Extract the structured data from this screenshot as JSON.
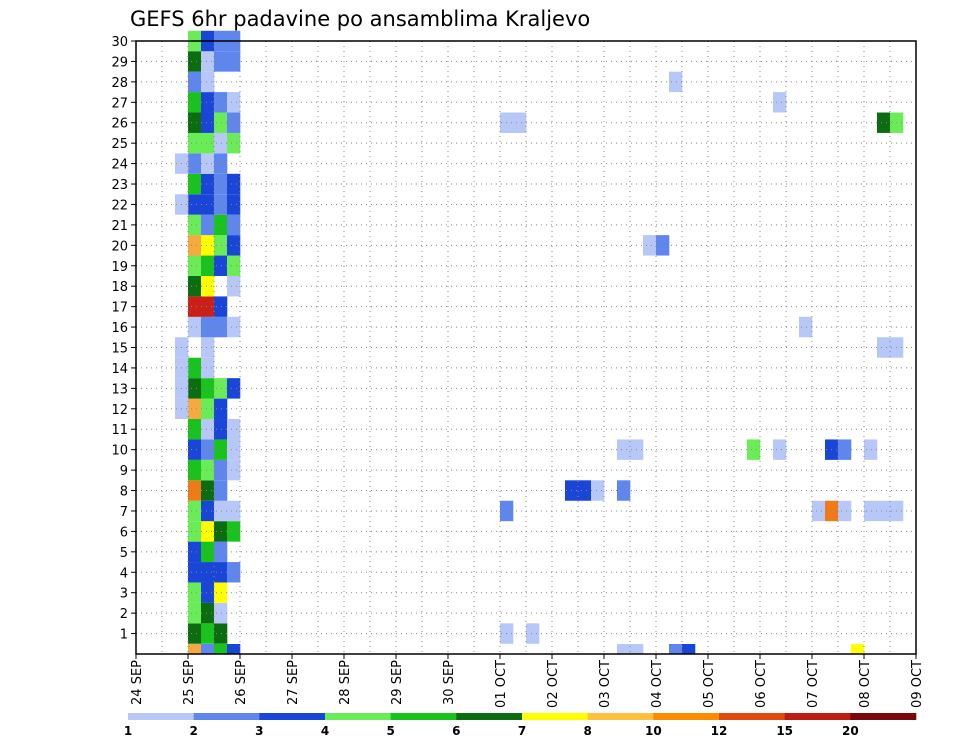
{
  "chart_data": {
    "type": "heatmap",
    "title": "GEFS 6hr padavine po ansamblima Kraljevo",
    "y_ticks": [
      "1",
      "2",
      "3",
      "4",
      "5",
      "6",
      "7",
      "8",
      "9",
      "10",
      "11",
      "12",
      "13",
      "14",
      "15",
      "16",
      "17",
      "18",
      "19",
      "20",
      "21",
      "22",
      "23",
      "24",
      "25",
      "26",
      "27",
      "28",
      "29",
      "30"
    ],
    "x_ticks": [
      "24 SEP",
      "25 SEP",
      "26 SEP",
      "27 SEP",
      "28 SEP",
      "29 SEP",
      "30 SEP",
      "01 OCT",
      "02 OCT",
      "03 OCT",
      "04 OCT",
      "05 OCT",
      "06 OCT",
      "07 OCT",
      "08 OCT",
      "09 OCT"
    ],
    "grid": true,
    "colorbar": {
      "labels": [
        "1",
        "2",
        "3",
        "4",
        "5",
        "6",
        "7",
        "8",
        "10",
        "12",
        "15",
        "20"
      ],
      "colors": [
        "#b7c8f8",
        "#5f86ec",
        "#1a46d8",
        "#6aec57",
        "#19c21c",
        "#0b6d10",
        "#ffff00",
        "#ffc13d",
        "#fb8c00",
        "#e04a10",
        "#bf1b15",
        "#7a0808"
      ]
    },
    "cells": [
      [
        4,
        0,
        "#f5a93f"
      ],
      [
        4,
        1,
        "#0b6d10"
      ],
      [
        4,
        2,
        "#6aec57"
      ],
      [
        4,
        3,
        "#6aec57"
      ],
      [
        4,
        4,
        "#1a46d8"
      ],
      [
        4,
        5,
        "#1a46d8"
      ],
      [
        4,
        6,
        "#6aec57"
      ],
      [
        4,
        7,
        "#6aec57"
      ],
      [
        4,
        8,
        "#f07a18"
      ],
      [
        4,
        9,
        "#19c21c"
      ],
      [
        4,
        10,
        "#1a46d8"
      ],
      [
        4,
        11,
        "#19c21c"
      ],
      [
        4,
        12,
        "#f5a93f"
      ],
      [
        4,
        13,
        "#0b6d10"
      ],
      [
        4,
        14,
        "#19c21c"
      ],
      [
        4,
        16,
        "#b7c8f8"
      ],
      [
        4,
        17,
        "#c9201a"
      ],
      [
        4,
        18,
        "#0b6d10"
      ],
      [
        4,
        19,
        "#6aec57"
      ],
      [
        4,
        20,
        "#f5a93f"
      ],
      [
        4,
        21,
        "#6aec57"
      ],
      [
        4,
        22,
        "#1a46d8"
      ],
      [
        4,
        23,
        "#19c21c"
      ],
      [
        4,
        24,
        "#5f86ec"
      ],
      [
        4,
        25,
        "#6aec57"
      ],
      [
        4,
        26,
        "#0b6d10"
      ],
      [
        4,
        27,
        "#19c21c"
      ],
      [
        4,
        28,
        "#5f86ec"
      ],
      [
        4,
        29,
        "#0b6d10"
      ],
      [
        4,
        30,
        "#6aec57"
      ],
      [
        3,
        12,
        "#b7c8f8"
      ],
      [
        3,
        13,
        "#b7c8f8"
      ],
      [
        3,
        14,
        "#b7c8f8"
      ],
      [
        3,
        15,
        "#b7c8f8"
      ],
      [
        3,
        22,
        "#b7c8f8"
      ],
      [
        3,
        24,
        "#b7c8f8"
      ],
      [
        5,
        0,
        "#5f86ec"
      ],
      [
        5,
        1,
        "#19c21c"
      ],
      [
        5,
        2,
        "#0b6d10"
      ],
      [
        5,
        3,
        "#1a46d8"
      ],
      [
        5,
        4,
        "#1a46d8"
      ],
      [
        5,
        5,
        "#19c21c"
      ],
      [
        5,
        6,
        "#ffff00"
      ],
      [
        5,
        7,
        "#1a46d8"
      ],
      [
        5,
        8,
        "#0b6d10"
      ],
      [
        5,
        9,
        "#6aec57"
      ],
      [
        5,
        10,
        "#5f86ec"
      ],
      [
        5,
        11,
        "#b7c8f8"
      ],
      [
        5,
        12,
        "#6aec57"
      ],
      [
        5,
        13,
        "#19c21c"
      ],
      [
        5,
        14,
        "#b7c8f8"
      ],
      [
        5,
        15,
        "#b7c8f8"
      ],
      [
        5,
        16,
        "#5f86ec"
      ],
      [
        5,
        17,
        "#c9201a"
      ],
      [
        5,
        18,
        "#ffff00"
      ],
      [
        5,
        19,
        "#19c21c"
      ],
      [
        5,
        20,
        "#ffff00"
      ],
      [
        5,
        21,
        "#5f86ec"
      ],
      [
        5,
        22,
        "#1a46d8"
      ],
      [
        5,
        23,
        "#1a46d8"
      ],
      [
        5,
        24,
        "#b7c8f8"
      ],
      [
        5,
        25,
        "#6aec57"
      ],
      [
        5,
        26,
        "#1a46d8"
      ],
      [
        5,
        27,
        "#1a46d8"
      ],
      [
        5,
        28,
        "#b7c8f8"
      ],
      [
        5,
        29,
        "#b7c8f8"
      ],
      [
        5,
        30,
        "#1a46d8"
      ],
      [
        6,
        0,
        "#19c21c"
      ],
      [
        6,
        1,
        "#0b6d10"
      ],
      [
        6,
        2,
        "#b7c8f8"
      ],
      [
        6,
        3,
        "#ffff00"
      ],
      [
        6,
        4,
        "#1a46d8"
      ],
      [
        6,
        5,
        "#5f86ec"
      ],
      [
        6,
        6,
        "#0b6d10"
      ],
      [
        6,
        7,
        "#b7c8f8"
      ],
      [
        6,
        8,
        "#5f86ec"
      ],
      [
        6,
        9,
        "#5f86ec"
      ],
      [
        6,
        10,
        "#19c21c"
      ],
      [
        6,
        11,
        "#1a46d8"
      ],
      [
        6,
        12,
        "#1a46d8"
      ],
      [
        6,
        13,
        "#6aec57"
      ],
      [
        6,
        16,
        "#5f86ec"
      ],
      [
        6,
        17,
        "#1a46d8"
      ],
      [
        6,
        19,
        "#1a46d8"
      ],
      [
        6,
        20,
        "#6aec57"
      ],
      [
        6,
        21,
        "#19c21c"
      ],
      [
        6,
        22,
        "#5f86ec"
      ],
      [
        6,
        23,
        "#5f86ec"
      ],
      [
        6,
        24,
        "#5f86ec"
      ],
      [
        6,
        25,
        "#b7c8f8"
      ],
      [
        6,
        26,
        "#6aec57"
      ],
      [
        6,
        27,
        "#5f86ec"
      ],
      [
        6,
        29,
        "#5f86ec"
      ],
      [
        6,
        30,
        "#5f86ec"
      ],
      [
        7,
        0,
        "#1a46d8"
      ],
      [
        7,
        4,
        "#5f86ec"
      ],
      [
        7,
        6,
        "#19c21c"
      ],
      [
        7,
        7,
        "#b7c8f8"
      ],
      [
        7,
        9,
        "#b7c8f8"
      ],
      [
        7,
        10,
        "#b7c8f8"
      ],
      [
        7,
        11,
        "#b7c8f8"
      ],
      [
        7,
        13,
        "#1a46d8"
      ],
      [
        7,
        16,
        "#b7c8f8"
      ],
      [
        7,
        18,
        "#b7c8f8"
      ],
      [
        7,
        19,
        "#6aec57"
      ],
      [
        7,
        20,
        "#1a46d8"
      ],
      [
        7,
        21,
        "#5f86ec"
      ],
      [
        7,
        22,
        "#1a46d8"
      ],
      [
        7,
        23,
        "#1a46d8"
      ],
      [
        7,
        25,
        "#6aec57"
      ],
      [
        7,
        26,
        "#5f86ec"
      ],
      [
        7,
        27,
        "#b7c8f8"
      ],
      [
        7,
        29,
        "#5f86ec"
      ],
      [
        7,
        30,
        "#5f86ec"
      ],
      [
        28,
        26,
        "#b7c8f8"
      ],
      [
        29,
        26,
        "#b7c8f8"
      ],
      [
        28,
        7,
        "#5f86ec"
      ],
      [
        28,
        1,
        "#b7c8f8"
      ],
      [
        30,
        1,
        "#b7c8f8"
      ],
      [
        33,
        8,
        "#1a46d8"
      ],
      [
        34,
        8,
        "#1a46d8"
      ],
      [
        35,
        8,
        "#b7c8f8"
      ],
      [
        37,
        8,
        "#5f86ec"
      ],
      [
        37,
        10,
        "#b7c8f8"
      ],
      [
        38,
        10,
        "#b7c8f8"
      ],
      [
        37,
        0,
        "#b7c8f8"
      ],
      [
        38,
        0,
        "#b7c8f8"
      ],
      [
        39,
        20,
        "#b7c8f8"
      ],
      [
        40,
        20,
        "#5f86ec"
      ],
      [
        41,
        28,
        "#b7c8f8"
      ],
      [
        41,
        0,
        "#5f86ec"
      ],
      [
        42,
        0,
        "#1a46d8"
      ],
      [
        47,
        10,
        "#6aec57"
      ],
      [
        49,
        10,
        "#b7c8f8"
      ],
      [
        49,
        27,
        "#b7c8f8"
      ],
      [
        51,
        16,
        "#b7c8f8"
      ],
      [
        52,
        7,
        "#b7c8f8"
      ],
      [
        53,
        7,
        "#f07a18"
      ],
      [
        54,
        7,
        "#b7c8f8"
      ],
      [
        53,
        10,
        "#1a46d8"
      ],
      [
        54,
        10,
        "#5f86ec"
      ],
      [
        56,
        10,
        "#b7c8f8"
      ],
      [
        56,
        7,
        "#b7c8f8"
      ],
      [
        57,
        7,
        "#b7c8f8"
      ],
      [
        58,
        7,
        "#b7c8f8"
      ],
      [
        57,
        15,
        "#b7c8f8"
      ],
      [
        58,
        15,
        "#b7c8f8"
      ],
      [
        57,
        26,
        "#0b6d10"
      ],
      [
        58,
        26,
        "#6aec57"
      ],
      [
        55,
        0,
        "#ffff00"
      ]
    ]
  }
}
